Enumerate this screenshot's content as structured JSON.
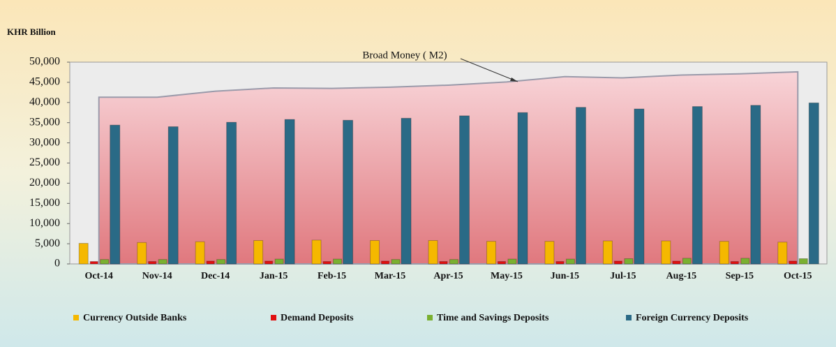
{
  "chart_data": {
    "type": "bar",
    "y_unit": "KHR Billion",
    "categories": [
      "Oct-14",
      "Nov-14",
      "Dec-14",
      "Jan-15",
      "Feb-15",
      "Mar-15",
      "Apr-15",
      "May-15",
      "Jun-15",
      "Jul-15",
      "Aug-15",
      "Sep-15",
      "Oct-15"
    ],
    "series": [
      {
        "name": "Currency Outside Banks",
        "color": "#f5b800",
        "values": [
          5100,
          5300,
          5500,
          5800,
          5900,
          5800,
          5800,
          5600,
          5600,
          5700,
          5700,
          5600,
          5400
        ]
      },
      {
        "name": "Demand Deposits",
        "color": "#e01010",
        "values": [
          600,
          600,
          700,
          700,
          600,
          700,
          600,
          600,
          600,
          700,
          700,
          600,
          700
        ]
      },
      {
        "name": "Time and Savings Deposits",
        "color": "#7ab030",
        "values": [
          1100,
          1100,
          1100,
          1200,
          1200,
          1100,
          1100,
          1200,
          1200,
          1300,
          1400,
          1400,
          1300
        ]
      },
      {
        "name": "Foreign Currency Deposits",
        "color": "#2a6a86",
        "values": [
          34400,
          34000,
          35100,
          35800,
          35600,
          36100,
          36700,
          37500,
          38800,
          38400,
          39000,
          39300,
          39900
        ]
      }
    ],
    "area_series": {
      "name": "Broad Money ( M2)",
      "color": "#e88a92",
      "values": [
        41300,
        41300,
        42800,
        43600,
        43500,
        43800,
        44300,
        45100,
        46400,
        46100,
        46800,
        47100,
        47600
      ]
    },
    "ylim": [
      0,
      50000
    ],
    "yticks": [
      0,
      {
        "value": 5000,
        "label": "5,000"
      },
      {
        "value": 10000,
        "label": "10,000"
      },
      {
        "value": 15000,
        "label": "15,000"
      },
      {
        "value": 20000,
        "label": "20,000"
      },
      {
        "value": 25000,
        "label": "25,000"
      },
      {
        "value": 30000,
        "label": "30,000"
      },
      {
        "value": 35000,
        "label": "35,000"
      },
      {
        "value": 40000,
        "label": "40,000"
      },
      {
        "value": 45000,
        "label": "45,000"
      },
      {
        "value": 50000,
        "label": "50,000"
      }
    ],
    "legend": "bottom"
  }
}
